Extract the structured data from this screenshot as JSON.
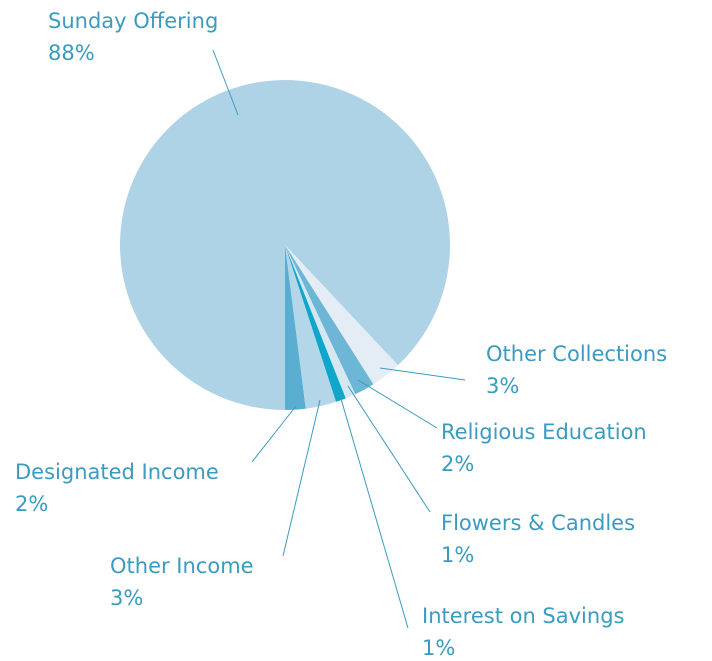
{
  "chart_data": {
    "type": "pie",
    "categories": [
      "Sunday Offering",
      "Other Collections",
      "Religious Education",
      "Flowers & Candles",
      "Interest on Savings",
      "Other Income",
      "Designated Income"
    ],
    "values": [
      88,
      3,
      2,
      1,
      1,
      3,
      2
    ],
    "value_labels": [
      "88%",
      "3%",
      "2%",
      "1%",
      "1%",
      "3%",
      "2%"
    ],
    "colors": [
      "#afd3e6",
      "#e4edf5",
      "#6db6d6",
      "#d6e7f1",
      "#0ea6cb",
      "#b3d6e8",
      "#5aaed2"
    ]
  }
}
